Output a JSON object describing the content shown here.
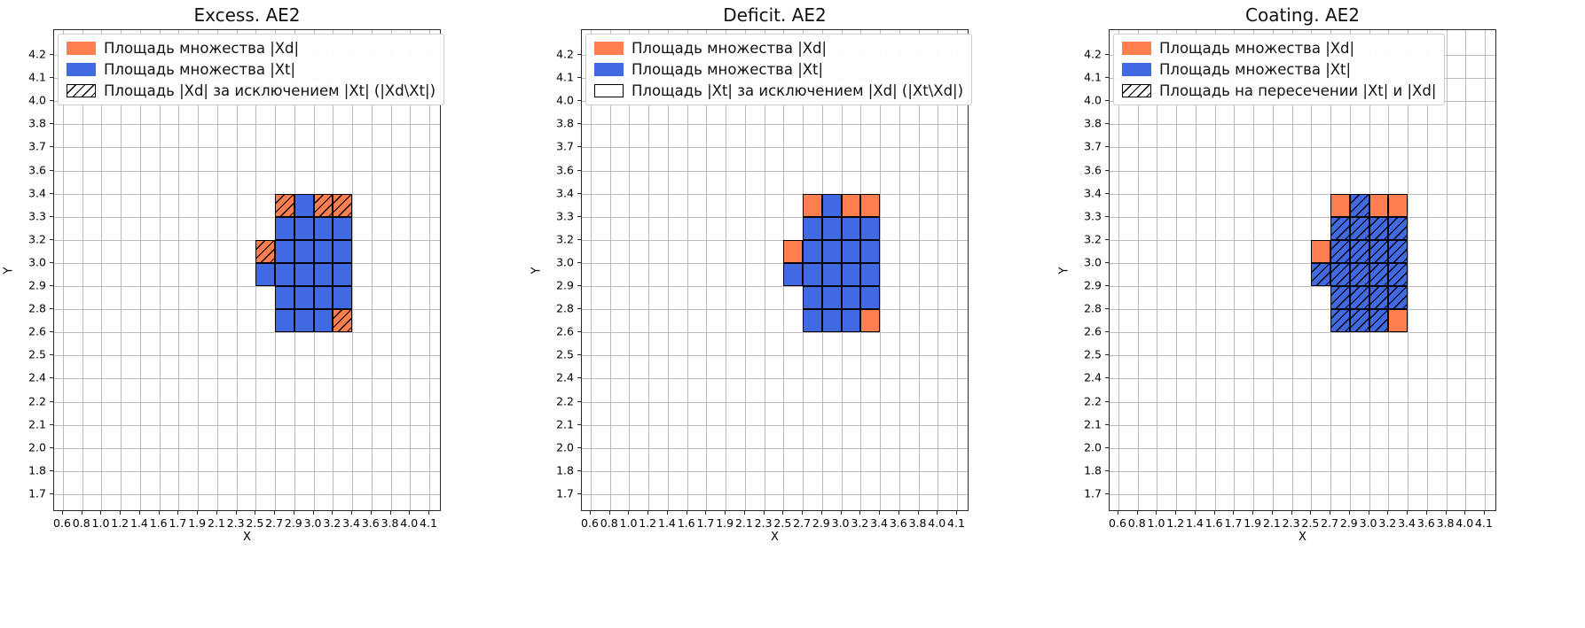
{
  "figure": {
    "background": "#ffffff",
    "grid_color": "#bcbcbc",
    "colors": {
      "xd_fill": "#ff7f50",
      "xt_fill": "#4169e1",
      "cell_edge": "#000000",
      "hatch": "#000000"
    },
    "hatch_style": "/"
  },
  "axes": {
    "x_label": "X",
    "y_label": "Y",
    "x_ticks": [
      "0.6",
      "0.8",
      "1.0",
      "1.2",
      "1.4",
      "1.6",
      "1.7",
      "1.9",
      "2.1",
      "2.3",
      "2.5",
      "2.7",
      "2.9",
      "3.0",
      "3.2",
      "3.4",
      "3.6",
      "3.8",
      "4.0",
      "4.1"
    ],
    "y_ticks_top_to_bottom": [
      "4.2",
      "4.1",
      "4.0",
      "3.8",
      "3.7",
      "3.6",
      "3.4",
      "3.3",
      "3.2",
      "3.0",
      "2.9",
      "2.8",
      "2.6",
      "2.5",
      "2.4",
      "2.2",
      "2.1",
      "2.0",
      "1.8",
      "1.7"
    ],
    "grid": true
  },
  "chart_data": [
    {
      "type": "heatmap",
      "title": "Excess. AE2",
      "xlabel": "X",
      "ylabel": "Y",
      "legend": [
        {
          "label": "Площадь множества |Xd|",
          "fill": "#ff7f50",
          "hatch": false,
          "edge": false
        },
        {
          "label": "Площадь множества  |Xt|",
          "fill": "#4169e1",
          "hatch": false,
          "edge": false
        },
        {
          "label": "Площадь |Xd| за исключением |Xt| (|Xd\\Xt|)",
          "fill": "#ffffff",
          "hatch": true,
          "edge": true
        }
      ],
      "legend_position": "upper left",
      "cells": [
        {
          "x0": "2.7",
          "x1": "2.9",
          "y0": "3.3",
          "y1": "3.4",
          "fill": "xd",
          "hatch": true
        },
        {
          "x0": "2.9",
          "x1": "3.0",
          "y0": "3.3",
          "y1": "3.4",
          "fill": "xt",
          "hatch": false
        },
        {
          "x0": "3.0",
          "x1": "3.2",
          "y0": "3.3",
          "y1": "3.4",
          "fill": "xd",
          "hatch": true
        },
        {
          "x0": "3.2",
          "x1": "3.4",
          "y0": "3.3",
          "y1": "3.4",
          "fill": "xd",
          "hatch": true
        },
        {
          "x0": "2.7",
          "x1": "2.9",
          "y0": "3.2",
          "y1": "3.3",
          "fill": "xt",
          "hatch": false
        },
        {
          "x0": "2.9",
          "x1": "3.0",
          "y0": "3.2",
          "y1": "3.3",
          "fill": "xt",
          "hatch": false
        },
        {
          "x0": "3.0",
          "x1": "3.2",
          "y0": "3.2",
          "y1": "3.3",
          "fill": "xt",
          "hatch": false
        },
        {
          "x0": "3.2",
          "x1": "3.4",
          "y0": "3.2",
          "y1": "3.3",
          "fill": "xt",
          "hatch": false
        },
        {
          "x0": "2.5",
          "x1": "2.7",
          "y0": "3.0",
          "y1": "3.2",
          "fill": "xd",
          "hatch": true
        },
        {
          "x0": "2.7",
          "x1": "2.9",
          "y0": "3.0",
          "y1": "3.2",
          "fill": "xt",
          "hatch": false
        },
        {
          "x0": "2.9",
          "x1": "3.0",
          "y0": "3.0",
          "y1": "3.2",
          "fill": "xt",
          "hatch": false
        },
        {
          "x0": "3.0",
          "x1": "3.2",
          "y0": "3.0",
          "y1": "3.2",
          "fill": "xt",
          "hatch": false
        },
        {
          "x0": "3.2",
          "x1": "3.4",
          "y0": "3.0",
          "y1": "3.2",
          "fill": "xt",
          "hatch": false
        },
        {
          "x0": "2.5",
          "x1": "2.7",
          "y0": "2.9",
          "y1": "3.0",
          "fill": "xt",
          "hatch": false
        },
        {
          "x0": "2.7",
          "x1": "2.9",
          "y0": "2.9",
          "y1": "3.0",
          "fill": "xt",
          "hatch": false
        },
        {
          "x0": "2.9",
          "x1": "3.0",
          "y0": "2.9",
          "y1": "3.0",
          "fill": "xt",
          "hatch": false
        },
        {
          "x0": "3.0",
          "x1": "3.2",
          "y0": "2.9",
          "y1": "3.0",
          "fill": "xt",
          "hatch": false
        },
        {
          "x0": "3.2",
          "x1": "3.4",
          "y0": "2.9",
          "y1": "3.0",
          "fill": "xt",
          "hatch": false
        },
        {
          "x0": "2.7",
          "x1": "2.9",
          "y0": "2.8",
          "y1": "2.9",
          "fill": "xt",
          "hatch": false
        },
        {
          "x0": "2.9",
          "x1": "3.0",
          "y0": "2.8",
          "y1": "2.9",
          "fill": "xt",
          "hatch": false
        },
        {
          "x0": "3.0",
          "x1": "3.2",
          "y0": "2.8",
          "y1": "2.9",
          "fill": "xt",
          "hatch": false
        },
        {
          "x0": "3.2",
          "x1": "3.4",
          "y0": "2.8",
          "y1": "2.9",
          "fill": "xt",
          "hatch": false
        },
        {
          "x0": "2.7",
          "x1": "2.9",
          "y0": "2.6",
          "y1": "2.8",
          "fill": "xt",
          "hatch": false
        },
        {
          "x0": "2.9",
          "x1": "3.0",
          "y0": "2.6",
          "y1": "2.8",
          "fill": "xt",
          "hatch": false
        },
        {
          "x0": "3.0",
          "x1": "3.2",
          "y0": "2.6",
          "y1": "2.8",
          "fill": "xt",
          "hatch": false
        },
        {
          "x0": "3.2",
          "x1": "3.4",
          "y0": "2.6",
          "y1": "2.8",
          "fill": "xd",
          "hatch": true
        }
      ]
    },
    {
      "type": "heatmap",
      "title": "Deficit. AE2",
      "xlabel": "X",
      "ylabel": "Y",
      "legend": [
        {
          "label": "Площадь множества |Xd|",
          "fill": "#ff7f50",
          "hatch": false,
          "edge": false
        },
        {
          "label": "Площадь множества  |Xt|",
          "fill": "#4169e1",
          "hatch": false,
          "edge": false
        },
        {
          "label": "Площадь |Xt| за исключением |Xd| (|Xt\\Xd|)",
          "fill": "#ffffff",
          "hatch": false,
          "edge": true
        }
      ],
      "legend_position": "upper left",
      "cells": [
        {
          "x0": "2.7",
          "x1": "2.9",
          "y0": "3.3",
          "y1": "3.4",
          "fill": "xd",
          "hatch": false
        },
        {
          "x0": "2.9",
          "x1": "3.0",
          "y0": "3.3",
          "y1": "3.4",
          "fill": "xt",
          "hatch": false
        },
        {
          "x0": "3.0",
          "x1": "3.2",
          "y0": "3.3",
          "y1": "3.4",
          "fill": "xd",
          "hatch": false
        },
        {
          "x0": "3.2",
          "x1": "3.4",
          "y0": "3.3",
          "y1": "3.4",
          "fill": "xd",
          "hatch": false
        },
        {
          "x0": "2.7",
          "x1": "2.9",
          "y0": "3.2",
          "y1": "3.3",
          "fill": "xt",
          "hatch": false
        },
        {
          "x0": "2.9",
          "x1": "3.0",
          "y0": "3.2",
          "y1": "3.3",
          "fill": "xt",
          "hatch": false
        },
        {
          "x0": "3.0",
          "x1": "3.2",
          "y0": "3.2",
          "y1": "3.3",
          "fill": "xt",
          "hatch": false
        },
        {
          "x0": "3.2",
          "x1": "3.4",
          "y0": "3.2",
          "y1": "3.3",
          "fill": "xt",
          "hatch": false
        },
        {
          "x0": "2.5",
          "x1": "2.7",
          "y0": "3.0",
          "y1": "3.2",
          "fill": "xd",
          "hatch": false
        },
        {
          "x0": "2.7",
          "x1": "2.9",
          "y0": "3.0",
          "y1": "3.2",
          "fill": "xt",
          "hatch": false
        },
        {
          "x0": "2.9",
          "x1": "3.0",
          "y0": "3.0",
          "y1": "3.2",
          "fill": "xt",
          "hatch": false
        },
        {
          "x0": "3.0",
          "x1": "3.2",
          "y0": "3.0",
          "y1": "3.2",
          "fill": "xt",
          "hatch": false
        },
        {
          "x0": "3.2",
          "x1": "3.4",
          "y0": "3.0",
          "y1": "3.2",
          "fill": "xt",
          "hatch": false
        },
        {
          "x0": "2.5",
          "x1": "2.7",
          "y0": "2.9",
          "y1": "3.0",
          "fill": "xt",
          "hatch": false
        },
        {
          "x0": "2.7",
          "x1": "2.9",
          "y0": "2.9",
          "y1": "3.0",
          "fill": "xt",
          "hatch": false
        },
        {
          "x0": "2.9",
          "x1": "3.0",
          "y0": "2.9",
          "y1": "3.0",
          "fill": "xt",
          "hatch": false
        },
        {
          "x0": "3.0",
          "x1": "3.2",
          "y0": "2.9",
          "y1": "3.0",
          "fill": "xt",
          "hatch": false
        },
        {
          "x0": "3.2",
          "x1": "3.4",
          "y0": "2.9",
          "y1": "3.0",
          "fill": "xt",
          "hatch": false
        },
        {
          "x0": "2.7",
          "x1": "2.9",
          "y0": "2.8",
          "y1": "2.9",
          "fill": "xt",
          "hatch": false
        },
        {
          "x0": "2.9",
          "x1": "3.0",
          "y0": "2.8",
          "y1": "2.9",
          "fill": "xt",
          "hatch": false
        },
        {
          "x0": "3.0",
          "x1": "3.2",
          "y0": "2.8",
          "y1": "2.9",
          "fill": "xt",
          "hatch": false
        },
        {
          "x0": "3.2",
          "x1": "3.4",
          "y0": "2.8",
          "y1": "2.9",
          "fill": "xt",
          "hatch": false
        },
        {
          "x0": "2.7",
          "x1": "2.9",
          "y0": "2.6",
          "y1": "2.8",
          "fill": "xt",
          "hatch": false
        },
        {
          "x0": "2.9",
          "x1": "3.0",
          "y0": "2.6",
          "y1": "2.8",
          "fill": "xt",
          "hatch": false
        },
        {
          "x0": "3.0",
          "x1": "3.2",
          "y0": "2.6",
          "y1": "2.8",
          "fill": "xt",
          "hatch": false
        },
        {
          "x0": "3.2",
          "x1": "3.4",
          "y0": "2.6",
          "y1": "2.8",
          "fill": "xd",
          "hatch": false
        }
      ]
    },
    {
      "type": "heatmap",
      "title": "Coating. AE2",
      "xlabel": "X",
      "ylabel": "Y",
      "legend": [
        {
          "label": "Площадь множества |Xd|",
          "fill": "#ff7f50",
          "hatch": false,
          "edge": false
        },
        {
          "label": "Площадь множества  |Xt|",
          "fill": "#4169e1",
          "hatch": false,
          "edge": false
        },
        {
          "label": "Площадь на пересечении |Xt| и |Xd|",
          "fill": "#ffffff",
          "hatch": true,
          "edge": true
        }
      ],
      "legend_position": "upper left",
      "cells": [
        {
          "x0": "2.7",
          "x1": "2.9",
          "y0": "3.3",
          "y1": "3.4",
          "fill": "xd",
          "hatch": false
        },
        {
          "x0": "2.9",
          "x1": "3.0",
          "y0": "3.3",
          "y1": "3.4",
          "fill": "xt",
          "hatch": true
        },
        {
          "x0": "3.0",
          "x1": "3.2",
          "y0": "3.3",
          "y1": "3.4",
          "fill": "xd",
          "hatch": false
        },
        {
          "x0": "3.2",
          "x1": "3.4",
          "y0": "3.3",
          "y1": "3.4",
          "fill": "xd",
          "hatch": false
        },
        {
          "x0": "2.7",
          "x1": "2.9",
          "y0": "3.2",
          "y1": "3.3",
          "fill": "xt",
          "hatch": true
        },
        {
          "x0": "2.9",
          "x1": "3.0",
          "y0": "3.2",
          "y1": "3.3",
          "fill": "xt",
          "hatch": true
        },
        {
          "x0": "3.0",
          "x1": "3.2",
          "y0": "3.2",
          "y1": "3.3",
          "fill": "xt",
          "hatch": true
        },
        {
          "x0": "3.2",
          "x1": "3.4",
          "y0": "3.2",
          "y1": "3.3",
          "fill": "xt",
          "hatch": true
        },
        {
          "x0": "2.5",
          "x1": "2.7",
          "y0": "3.0",
          "y1": "3.2",
          "fill": "xd",
          "hatch": false
        },
        {
          "x0": "2.7",
          "x1": "2.9",
          "y0": "3.0",
          "y1": "3.2",
          "fill": "xt",
          "hatch": true
        },
        {
          "x0": "2.9",
          "x1": "3.0",
          "y0": "3.0",
          "y1": "3.2",
          "fill": "xt",
          "hatch": true
        },
        {
          "x0": "3.0",
          "x1": "3.2",
          "y0": "3.0",
          "y1": "3.2",
          "fill": "xt",
          "hatch": true
        },
        {
          "x0": "3.2",
          "x1": "3.4",
          "y0": "3.0",
          "y1": "3.2",
          "fill": "xt",
          "hatch": true
        },
        {
          "x0": "2.5",
          "x1": "2.7",
          "y0": "2.9",
          "y1": "3.0",
          "fill": "xt",
          "hatch": true
        },
        {
          "x0": "2.7",
          "x1": "2.9",
          "y0": "2.9",
          "y1": "3.0",
          "fill": "xt",
          "hatch": true
        },
        {
          "x0": "2.9",
          "x1": "3.0",
          "y0": "2.9",
          "y1": "3.0",
          "fill": "xt",
          "hatch": true
        },
        {
          "x0": "3.0",
          "x1": "3.2",
          "y0": "2.9",
          "y1": "3.0",
          "fill": "xt",
          "hatch": true
        },
        {
          "x0": "3.2",
          "x1": "3.4",
          "y0": "2.9",
          "y1": "3.0",
          "fill": "xt",
          "hatch": true
        },
        {
          "x0": "2.7",
          "x1": "2.9",
          "y0": "2.8",
          "y1": "2.9",
          "fill": "xt",
          "hatch": true
        },
        {
          "x0": "2.9",
          "x1": "3.0",
          "y0": "2.8",
          "y1": "2.9",
          "fill": "xt",
          "hatch": true
        },
        {
          "x0": "3.0",
          "x1": "3.2",
          "y0": "2.8",
          "y1": "2.9",
          "fill": "xt",
          "hatch": true
        },
        {
          "x0": "3.2",
          "x1": "3.4",
          "y0": "2.8",
          "y1": "2.9",
          "fill": "xt",
          "hatch": true
        },
        {
          "x0": "2.7",
          "x1": "2.9",
          "y0": "2.6",
          "y1": "2.8",
          "fill": "xt",
          "hatch": true
        },
        {
          "x0": "2.9",
          "x1": "3.0",
          "y0": "2.6",
          "y1": "2.8",
          "fill": "xt",
          "hatch": true
        },
        {
          "x0": "3.0",
          "x1": "3.2",
          "y0": "2.6",
          "y1": "2.8",
          "fill": "xt",
          "hatch": true
        },
        {
          "x0": "3.2",
          "x1": "3.4",
          "y0": "2.6",
          "y1": "2.8",
          "fill": "xd",
          "hatch": false
        }
      ]
    }
  ]
}
